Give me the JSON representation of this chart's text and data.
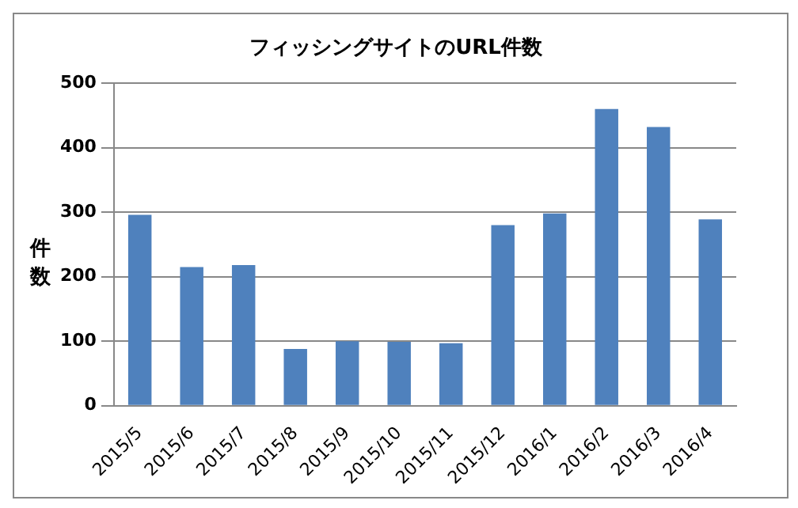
{
  "chart_data": {
    "type": "bar",
    "title": "フィッシングサイトのURL件数",
    "ylabel": "件数",
    "categories": [
      "2015/5",
      "2015/6",
      "2015/7",
      "2015/8",
      "2015/9",
      "2015/10",
      "2015/11",
      "2015/12",
      "2016/1",
      "2016/2",
      "2016/3",
      "2016/4"
    ],
    "values": [
      296,
      215,
      218,
      88,
      100,
      99,
      97,
      280,
      298,
      460,
      432,
      289
    ],
    "color": "#4f81bd",
    "ylim": [
      0,
      500
    ],
    "yticks": [
      0,
      100,
      200,
      300,
      400,
      500
    ],
    "grid": "y",
    "legend": false
  }
}
